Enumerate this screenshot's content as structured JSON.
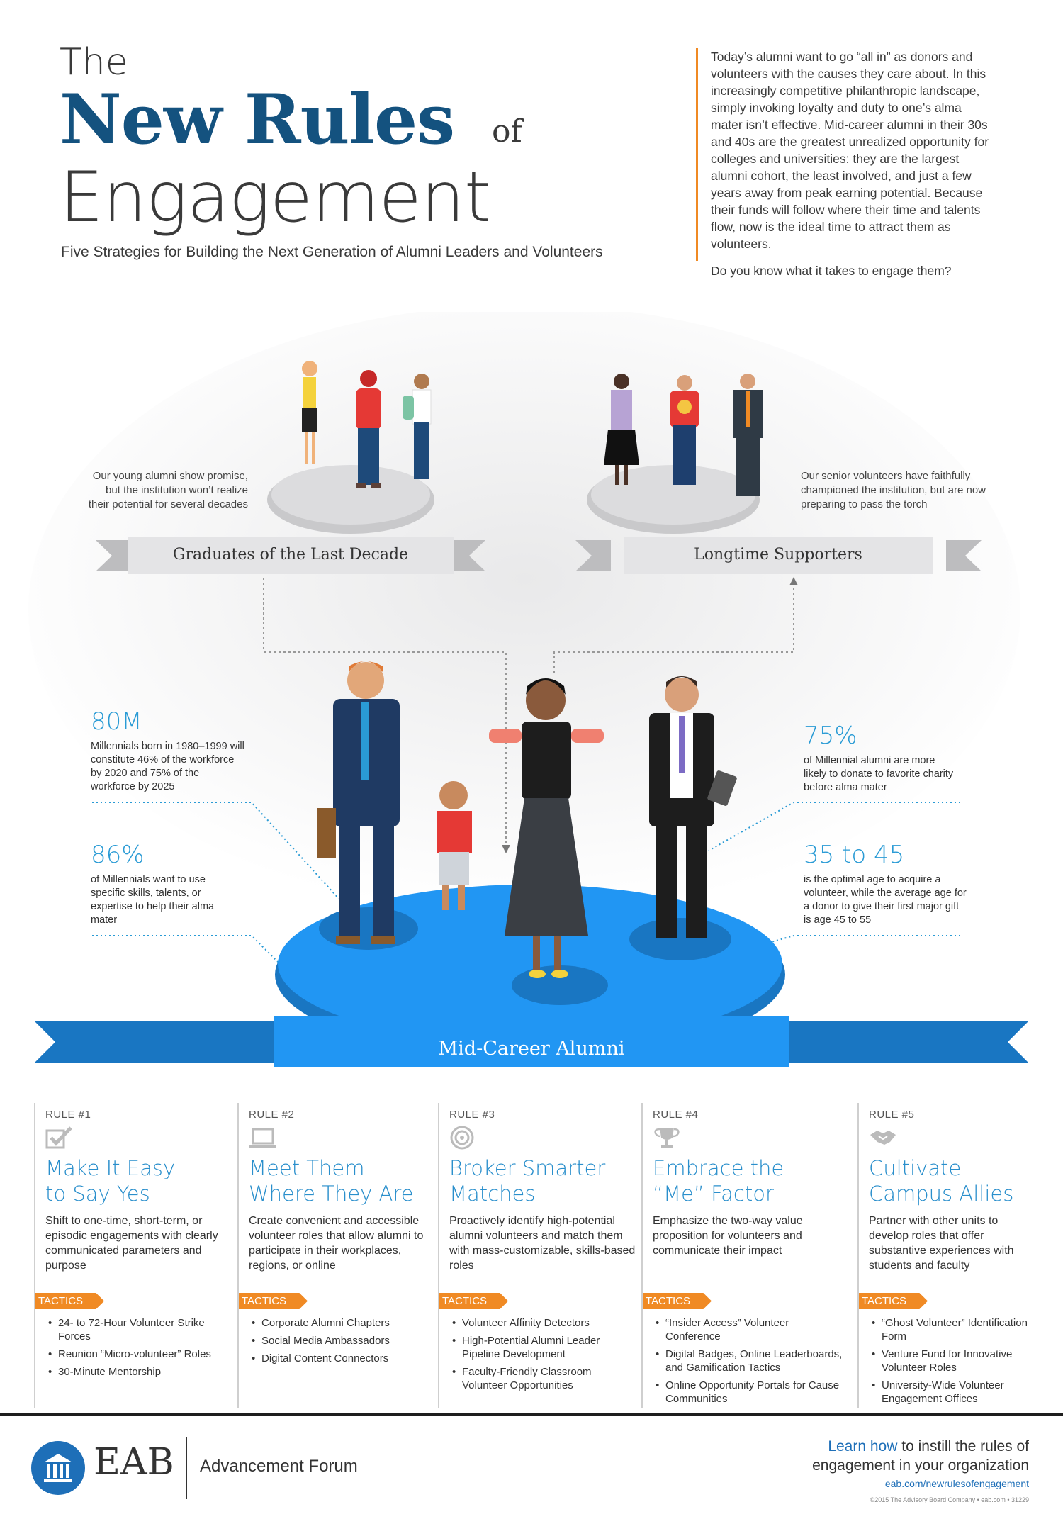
{
  "header": {
    "title_the": "The",
    "title_new_rules": "New Rules",
    "title_of": "of",
    "title_engagement": "Engagement",
    "subtitle": "Five Strategies for Building the Next Generation of Alumni Leaders and Volunteers",
    "intro_text": "Today’s alumni want to go “all in” as donors and volunteers with the causes they care about. In this increasingly competitive philanthropic landscape, simply invoking loyalty and duty to one’s alma mater isn’t effective. Mid-career alumni in their 30s and 40s are the greatest unrealized opportunity for colleges and universities: they are the largest alumni cohort, the least involved, and just a few years away from peak earning potential. Because their funds will follow where their time and talents flow, now is the ideal time to attract them as volunteers.",
    "intro_question": "Do you know what it takes to engage them?"
  },
  "groups": {
    "young_note": "Our young alumni show promise, but the institution won’t realize their potential for several decades",
    "young_label": "Graduates of the Last Decade",
    "senior_note": "Our senior volunteers have faithfully championed the institution, but are now preparing to pass the torch",
    "senior_label": "Longtime Supporters",
    "mid_label": "Mid-Career Alumni"
  },
  "stats": [
    {
      "value": "80M",
      "text": "Millennials born in 1980–1999 will constitute 46% of the workforce by 2020 and 75% of the workforce by 2025"
    },
    {
      "value": "86%",
      "text": "of Millennials want to use specific skills, talents, or expertise to help their alma mater"
    },
    {
      "value": "75%",
      "text": "of Millennial alumni are more likely to donate to favorite charity before alma mater"
    },
    {
      "value": "35 to 45",
      "text": "is the optimal age to acquire a volunteer, while the average age for a donor to give their first major gift is age 45 to 55"
    }
  ],
  "rules": [
    {
      "num": "RULE #1",
      "icon": "check-icon",
      "title_1": "Make It Easy",
      "title_2": "to Say Yes",
      "desc": "Shift to one-time, short-term, or episodic engagements with clearly communicated parameters and purpose",
      "tactics_label": "TACTICS",
      "tactics": [
        "24- to 72-Hour Volunteer Strike Forces",
        "Reunion “Micro-volunteer” Roles",
        "30-Minute Mentorship"
      ]
    },
    {
      "num": "RULE #2",
      "icon": "laptop-icon",
      "title_1": "Meet Them",
      "title_2": "Where They Are",
      "desc": "Create convenient and accessible volunteer roles that allow alumni to participate in their workplaces, regions, or online",
      "tactics_label": "TACTICS",
      "tactics": [
        "Corporate Alumni Chapters",
        "Social Media Ambassadors",
        "Digital Content Connectors"
      ]
    },
    {
      "num": "RULE #3",
      "icon": "target-icon",
      "title_1": "Broker Smarter",
      "title_2": "Matches",
      "desc": "Proactively identify high-potential alumni volunteers and match them with mass-customizable, skills-based roles",
      "tactics_label": "TACTICS",
      "tactics": [
        "Volunteer Affinity Detectors",
        "High-Potential Alumni Leader Pipeline Development",
        "Faculty-Friendly Classroom Volunteer Opportunities"
      ]
    },
    {
      "num": "RULE #4",
      "icon": "trophy-icon",
      "title_1": "Embrace the",
      "title_2": "“Me” Factor",
      "desc": "Emphasize the two-way value proposition for volunteers and communicate their impact",
      "tactics_label": "TACTICS",
      "tactics": [
        "“Insider Access” Volunteer Conference",
        "Digital Badges, Online Leaderboards, and Gamification Tactics",
        "Online Opportunity Portals for Cause Communities"
      ]
    },
    {
      "num": "RULE #5",
      "icon": "handshake-icon",
      "title_1": "Cultivate",
      "title_2": "Campus Allies",
      "desc": "Partner with other units to develop roles that offer substantive experiences with students and faculty",
      "tactics_label": "TACTICS",
      "tactics": [
        "“Ghost Volunteer” Identification Form",
        "Venture Fund for Innovative Volunteer Roles",
        "University-Wide Volunteer Engagement Offices"
      ]
    }
  ],
  "footer": {
    "brand": "EAB",
    "forum": "Advancement Forum",
    "learn_link": "Learn how",
    "learn_rest_1": " to instill the rules of",
    "learn_rest_2": "engagement in your organization",
    "url": "eab.com/newrulesofengagement",
    "copyright": "©2015 The Advisory Board Company • eab.com • 31229"
  },
  "colors": {
    "title_blue": "#14527f",
    "accent_blue": "#2a9bd5",
    "orange": "#f08a24",
    "platform_blue": "#1e8fd6"
  }
}
